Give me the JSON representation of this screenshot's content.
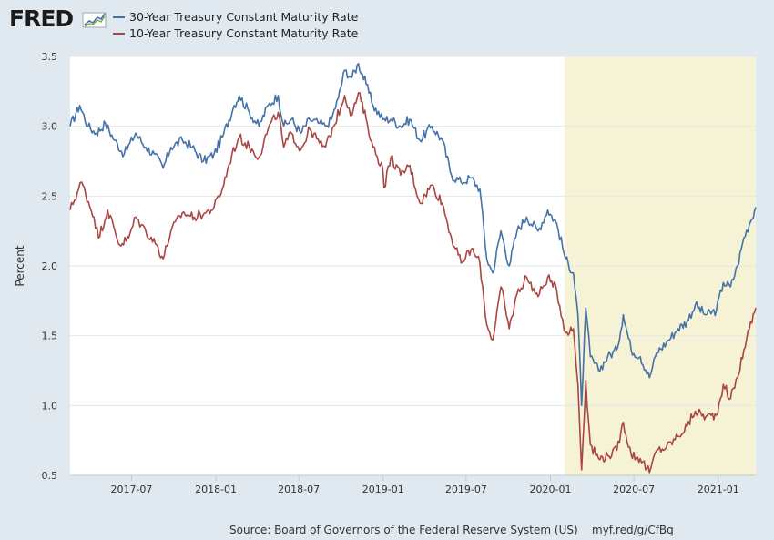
{
  "branding": {
    "logo_text": "FRED"
  },
  "colors": {
    "series1": "#4572a7",
    "series2": "#aa4643",
    "recession": "#f5f2d6",
    "plot_bg": "#ffffff",
    "page_bg": "#e1e9f0",
    "grid": "#e6e6e6"
  },
  "footer": {
    "source": "Source: Board of Governors of the Federal Reserve System (US)",
    "link": "myf.red/g/CfBq"
  },
  "chart_data": {
    "type": "line",
    "title": "",
    "xlabel": "",
    "ylabel": "Percent",
    "ylim": [
      0.5,
      3.5
    ],
    "xlim": [
      "2017-02-17",
      "2021-03-24"
    ],
    "yticks": [
      0.5,
      1.0,
      1.5,
      2.0,
      2.5,
      3.0,
      3.5
    ],
    "ytick_labels": [
      "0.5",
      "1.0",
      "1.5",
      "2.0",
      "2.5",
      "3.0",
      "3.5"
    ],
    "xticks": [
      "2017-07-01",
      "2018-01-01",
      "2018-07-01",
      "2019-01-01",
      "2019-07-01",
      "2020-01-01",
      "2020-07-01",
      "2021-01-01"
    ],
    "xtick_labels": [
      "2017-07",
      "2018-01",
      "2018-07",
      "2019-01",
      "2019-07",
      "2020-01",
      "2020-07",
      "2021-01"
    ],
    "grid": "horizontal",
    "legend_position": "top-left",
    "shaded_periods": [
      {
        "start": "2020-02-01",
        "end": "2021-03-24"
      }
    ],
    "series": [
      {
        "name": "30-Year Treasury Constant Maturity Rate",
        "color": "#4572a7",
        "points": [
          [
            "2017-02-17",
            3.0
          ],
          [
            "2017-03-10",
            3.15
          ],
          [
            "2017-03-28",
            3.0
          ],
          [
            "2017-04-15",
            2.95
          ],
          [
            "2017-05-05",
            3.02
          ],
          [
            "2017-05-25",
            2.9
          ],
          [
            "2017-06-15",
            2.8
          ],
          [
            "2017-07-10",
            2.95
          ],
          [
            "2017-08-01",
            2.85
          ],
          [
            "2017-08-20",
            2.8
          ],
          [
            "2017-09-08",
            2.7
          ],
          [
            "2017-09-25",
            2.85
          ],
          [
            "2017-10-20",
            2.9
          ],
          [
            "2017-11-10",
            2.85
          ],
          [
            "2017-12-05",
            2.75
          ],
          [
            "2017-12-28",
            2.8
          ],
          [
            "2018-01-15",
            2.92
          ],
          [
            "2018-02-10",
            3.15
          ],
          [
            "2018-02-21",
            3.22
          ],
          [
            "2018-03-15",
            3.1
          ],
          [
            "2018-04-05",
            3.0
          ],
          [
            "2018-04-25",
            3.15
          ],
          [
            "2018-05-17",
            3.22
          ],
          [
            "2018-05-29",
            3.0
          ],
          [
            "2018-06-15",
            3.05
          ],
          [
            "2018-07-05",
            2.95
          ],
          [
            "2018-07-25",
            3.05
          ],
          [
            "2018-08-15",
            3.02
          ],
          [
            "2018-08-28",
            3.0
          ],
          [
            "2018-09-10",
            3.05
          ],
          [
            "2018-09-25",
            3.2
          ],
          [
            "2018-10-09",
            3.4
          ],
          [
            "2018-10-25",
            3.35
          ],
          [
            "2018-11-08",
            3.45
          ],
          [
            "2018-11-25",
            3.3
          ],
          [
            "2018-12-10",
            3.15
          ],
          [
            "2018-12-31",
            3.05
          ],
          [
            "2019-01-18",
            3.05
          ],
          [
            "2019-02-08",
            3.0
          ],
          [
            "2019-02-28",
            3.05
          ],
          [
            "2019-03-22",
            2.9
          ],
          [
            "2019-04-17",
            3.0
          ],
          [
            "2019-05-10",
            2.9
          ],
          [
            "2019-05-30",
            2.65
          ],
          [
            "2019-06-20",
            2.6
          ],
          [
            "2019-07-12",
            2.63
          ],
          [
            "2019-07-31",
            2.55
          ],
          [
            "2019-08-15",
            2.05
          ],
          [
            "2019-08-28",
            1.95
          ],
          [
            "2019-09-15",
            2.25
          ],
          [
            "2019-10-03",
            2.0
          ],
          [
            "2019-10-20",
            2.25
          ],
          [
            "2019-11-10",
            2.35
          ],
          [
            "2019-12-05",
            2.25
          ],
          [
            "2019-12-26",
            2.4
          ],
          [
            "2020-01-15",
            2.3
          ],
          [
            "2020-02-03",
            2.05
          ],
          [
            "2020-02-20",
            1.95
          ],
          [
            "2020-03-01",
            1.65
          ],
          [
            "2020-03-09",
            1.0
          ],
          [
            "2020-03-18",
            1.7
          ],
          [
            "2020-03-28",
            1.35
          ],
          [
            "2020-04-15",
            1.25
          ],
          [
            "2020-05-05",
            1.35
          ],
          [
            "2020-05-25",
            1.4
          ],
          [
            "2020-06-08",
            1.65
          ],
          [
            "2020-06-25",
            1.4
          ],
          [
            "2020-07-15",
            1.35
          ],
          [
            "2020-08-04",
            1.2
          ],
          [
            "2020-08-20",
            1.38
          ],
          [
            "2020-09-10",
            1.45
          ],
          [
            "2020-10-05",
            1.55
          ],
          [
            "2020-10-25",
            1.6
          ],
          [
            "2020-11-12",
            1.72
          ],
          [
            "2020-12-05",
            1.65
          ],
          [
            "2020-12-28",
            1.68
          ],
          [
            "2021-01-12",
            1.88
          ],
          [
            "2021-01-28",
            1.85
          ],
          [
            "2021-02-12",
            2.0
          ],
          [
            "2021-02-26",
            2.2
          ],
          [
            "2021-03-10",
            2.3
          ],
          [
            "2021-03-24",
            2.42
          ]
        ]
      },
      {
        "name": "10-Year Treasury Constant Maturity Rate",
        "color": "#aa4643",
        "points": [
          [
            "2017-02-17",
            2.4
          ],
          [
            "2017-03-14",
            2.6
          ],
          [
            "2017-04-10",
            2.35
          ],
          [
            "2017-04-20",
            2.2
          ],
          [
            "2017-05-10",
            2.4
          ],
          [
            "2017-06-05",
            2.15
          ],
          [
            "2017-06-25",
            2.2
          ],
          [
            "2017-07-10",
            2.35
          ],
          [
            "2017-08-01",
            2.25
          ],
          [
            "2017-08-25",
            2.15
          ],
          [
            "2017-09-08",
            2.05
          ],
          [
            "2017-09-25",
            2.25
          ],
          [
            "2017-10-20",
            2.38
          ],
          [
            "2017-11-15",
            2.35
          ],
          [
            "2017-12-10",
            2.38
          ],
          [
            "2017-12-28",
            2.42
          ],
          [
            "2018-01-15",
            2.55
          ],
          [
            "2018-02-05",
            2.8
          ],
          [
            "2018-02-21",
            2.92
          ],
          [
            "2018-03-15",
            2.85
          ],
          [
            "2018-04-05",
            2.78
          ],
          [
            "2018-04-25",
            2.98
          ],
          [
            "2018-05-17",
            3.1
          ],
          [
            "2018-05-29",
            2.85
          ],
          [
            "2018-06-15",
            2.95
          ],
          [
            "2018-07-05",
            2.83
          ],
          [
            "2018-07-25",
            2.98
          ],
          [
            "2018-08-15",
            2.88
          ],
          [
            "2018-08-28",
            2.85
          ],
          [
            "2018-09-15",
            3.0
          ],
          [
            "2018-10-09",
            3.22
          ],
          [
            "2018-10-25",
            3.08
          ],
          [
            "2018-11-08",
            3.24
          ],
          [
            "2018-11-25",
            3.05
          ],
          [
            "2018-12-10",
            2.85
          ],
          [
            "2018-12-31",
            2.7
          ],
          [
            "2019-01-03",
            2.56
          ],
          [
            "2019-01-18",
            2.78
          ],
          [
            "2019-02-08",
            2.65
          ],
          [
            "2019-02-28",
            2.72
          ],
          [
            "2019-03-22",
            2.45
          ],
          [
            "2019-04-17",
            2.58
          ],
          [
            "2019-05-10",
            2.45
          ],
          [
            "2019-05-30",
            2.2
          ],
          [
            "2019-06-20",
            2.02
          ],
          [
            "2019-07-12",
            2.12
          ],
          [
            "2019-07-31",
            2.02
          ],
          [
            "2019-08-15",
            1.58
          ],
          [
            "2019-08-28",
            1.47
          ],
          [
            "2019-09-15",
            1.85
          ],
          [
            "2019-10-03",
            1.55
          ],
          [
            "2019-10-20",
            1.8
          ],
          [
            "2019-11-10",
            1.92
          ],
          [
            "2019-12-05",
            1.78
          ],
          [
            "2019-12-26",
            1.92
          ],
          [
            "2020-01-15",
            1.82
          ],
          [
            "2020-02-03",
            1.52
          ],
          [
            "2020-02-20",
            1.55
          ],
          [
            "2020-03-01",
            1.15
          ],
          [
            "2020-03-09",
            0.54
          ],
          [
            "2020-03-18",
            1.18
          ],
          [
            "2020-03-28",
            0.72
          ],
          [
            "2020-04-15",
            0.62
          ],
          [
            "2020-05-05",
            0.64
          ],
          [
            "2020-05-25",
            0.68
          ],
          [
            "2020-06-08",
            0.88
          ],
          [
            "2020-06-25",
            0.65
          ],
          [
            "2020-07-15",
            0.62
          ],
          [
            "2020-08-04",
            0.52
          ],
          [
            "2020-08-20",
            0.68
          ],
          [
            "2020-09-10",
            0.7
          ],
          [
            "2020-10-05",
            0.78
          ],
          [
            "2020-10-25",
            0.85
          ],
          [
            "2020-11-12",
            0.96
          ],
          [
            "2020-12-05",
            0.92
          ],
          [
            "2020-12-28",
            0.93
          ],
          [
            "2021-01-12",
            1.15
          ],
          [
            "2021-01-28",
            1.05
          ],
          [
            "2021-02-12",
            1.2
          ],
          [
            "2021-02-26",
            1.4
          ],
          [
            "2021-03-10",
            1.55
          ],
          [
            "2021-03-24",
            1.7
          ]
        ]
      }
    ]
  }
}
